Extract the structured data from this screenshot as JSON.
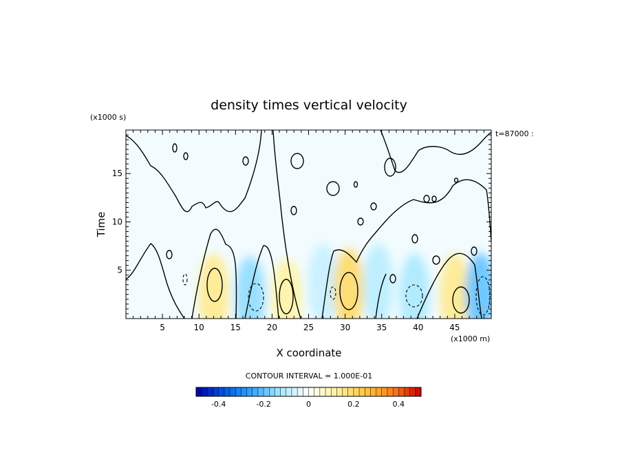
{
  "chart_data": {
    "type": "heatmap",
    "title": "density times vertical velocity",
    "xlabel": "X coordinate",
    "ylabel": "Time",
    "x_scale_label": "(x1000 m)",
    "y_scale_label": "(x1000 s)",
    "time_stamp": "t=87000 :",
    "xlim": [
      0,
      50000
    ],
    "ylim": [
      0,
      19500
    ],
    "x_ticks": [
      5,
      10,
      15,
      20,
      25,
      30,
      35,
      40,
      45
    ],
    "y_ticks": [
      5,
      10,
      15
    ],
    "contour_interval_label": "CONTOUR INTERVAL = 1.000E-01",
    "colorbar": {
      "min": -0.5,
      "max": 0.5,
      "ticks": [
        -0.4,
        -0.2,
        0,
        0.2,
        0.4
      ],
      "tick_labels": [
        "-0.4",
        "-0.2",
        "0",
        "0.2",
        "0.4"
      ],
      "colors": [
        "#0000a6",
        "#0058e0",
        "#33a8ff",
        "#a8e8ff",
        "#ffffff",
        "#fff2a0",
        "#ffc840",
        "#ff7d1a",
        "#c80000"
      ]
    },
    "features": [
      {
        "kind": "positive",
        "x": 12000,
        "y": 2500,
        "value": 0.15
      },
      {
        "kind": "negative",
        "x": 17000,
        "y": 2200,
        "value": -0.15
      },
      {
        "kind": "positive",
        "x": 22000,
        "y": 2000,
        "value": 0.12
      },
      {
        "kind": "negative",
        "x": 27000,
        "y": 3500,
        "value": -0.08
      },
      {
        "kind": "positive",
        "x": 30500,
        "y": 3000,
        "value": 0.2
      },
      {
        "kind": "negative",
        "x": 34500,
        "y": 3500,
        "value": -0.1
      },
      {
        "kind": "negative",
        "x": 39500,
        "y": 2500,
        "value": -0.12
      },
      {
        "kind": "positive",
        "x": 45000,
        "y": 2500,
        "value": 0.15
      },
      {
        "kind": "negative",
        "x": 48500,
        "y": 2500,
        "value": -0.2
      }
    ]
  }
}
